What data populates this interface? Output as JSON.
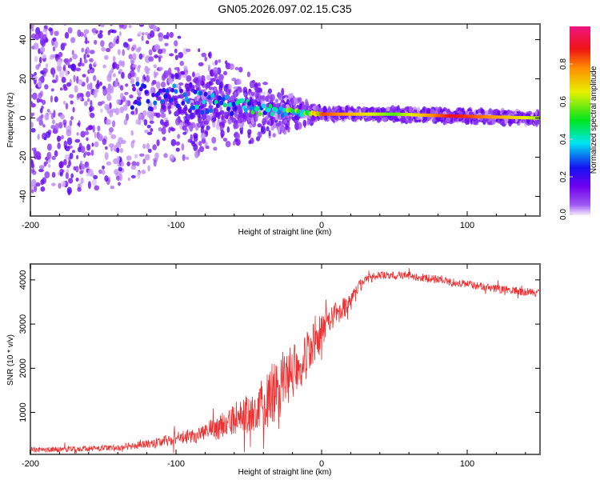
{
  "chart_data": [
    {
      "type": "heatmap",
      "title": "GN05.2026.097.02.15.C35",
      "xlabel": "Height of straight line (km)",
      "ylabel": "Frequency (Hz)",
      "xlim": [
        -200,
        150
      ],
      "ylim": [
        -50,
        48
      ],
      "xticks": [
        "-200",
        "-100",
        "0",
        "100"
      ],
      "xtick_values": [
        -200,
        -100,
        0,
        100
      ],
      "yticks": [
        "40",
        "20",
        "0",
        "-20",
        "-40"
      ],
      "ytick_values": [
        40,
        20,
        0,
        -20,
        -40
      ],
      "ridge": {
        "x": [
          -150,
          -100,
          -50,
          -25,
          0,
          50,
          90,
          150
        ],
        "freq": [
          12,
          10,
          5,
          3,
          2,
          2,
          1,
          0
        ],
        "amplitude": [
          0.2,
          0.3,
          0.45,
          0.5,
          0.85,
          0.55,
          0.9,
          0.6
        ]
      },
      "colorbar": {
        "label": "Normalized spectral amplitude",
        "ticks": [
          "0.0",
          "0.2",
          "0.4",
          "0.6",
          "0.8"
        ],
        "tick_values": [
          0,
          0.2,
          0.4,
          0.6,
          0.8
        ],
        "range": [
          0,
          1
        ]
      }
    },
    {
      "type": "line",
      "xlabel": "Height of straight line (km)",
      "ylabel": "SNR (10 * v/v)",
      "xlim": [
        -200,
        150
      ],
      "ylim": [
        50,
        4360
      ],
      "xticks": [
        "-200",
        "-100",
        "0",
        "100"
      ],
      "xtick_values": [
        -200,
        -100,
        0,
        100
      ],
      "yticks": [
        "1000",
        "2000",
        "3000",
        "4000"
      ],
      "ytick_values": [
        1000,
        2000,
        3000,
        4000
      ],
      "series": [
        {
          "name": "SNR",
          "color": "#f03030",
          "x": [
            -200,
            -170,
            -140,
            -120,
            -100,
            -80,
            -60,
            -40,
            -30,
            -20,
            -10,
            0,
            10,
            20,
            25,
            30,
            40,
            60,
            80,
            100,
            120,
            150
          ],
          "y": [
            150,
            170,
            200,
            280,
            400,
            550,
            800,
            1200,
            1500,
            2000,
            2300,
            2800,
            3200,
            3500,
            3800,
            4000,
            4100,
            4100,
            4000,
            3900,
            3800,
            3700
          ],
          "noise": [
            100,
            110,
            120,
            150,
            250,
            350,
            600,
            1000,
            1200,
            1200,
            900,
            700,
            500,
            350,
            300,
            200,
            150,
            150,
            150,
            150,
            150,
            150
          ]
        }
      ]
    }
  ]
}
